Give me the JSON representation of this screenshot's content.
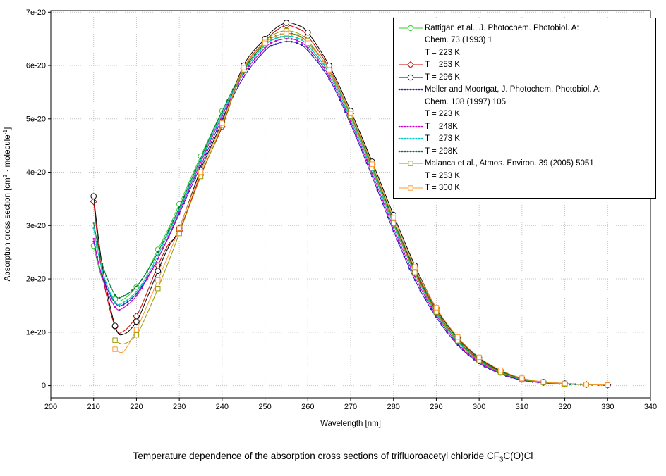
{
  "chart_data": {
    "type": "line",
    "title": "Temperature dependence of the absorption cross sections of trifluoroacetyl chloride CF3C(O)Cl",
    "caption_parts": {
      "prefix": "Temperature dependence of the absorption cross sections of trifluoroacetyl chloride CF",
      "sub": "3",
      "suffix": "C(O)Cl"
    },
    "xlabel": "Wavelength [nm]",
    "ylabel_parts": [
      {
        "t": "Absorption cross section [cm"
      },
      {
        "t": "2",
        "sup": true
      },
      {
        "t": " · molecule"
      },
      {
        "t": "-1",
        "sup": true
      },
      {
        "t": "]"
      }
    ],
    "x_range": [
      200,
      340
    ],
    "y_range_1e20": [
      -0.23,
      7.03
    ],
    "values_unit": "1e-20 cm2 molecule-1",
    "grid": true,
    "legend_position": "top-right",
    "x_ticks": [
      200,
      210,
      220,
      230,
      240,
      250,
      260,
      270,
      280,
      290,
      300,
      310,
      320,
      330,
      340
    ],
    "y_ticks": [
      {
        "v": 0,
        "label": "0"
      },
      {
        "v": 1,
        "label": "1e-20"
      },
      {
        "v": 2,
        "label": "2e-20"
      },
      {
        "v": 3,
        "label": "3e-20"
      },
      {
        "v": 4,
        "label": "4e-20"
      },
      {
        "v": 5,
        "label": "5e-20"
      },
      {
        "v": 6,
        "label": "6e-20"
      },
      {
        "v": 7,
        "label": "7e-20"
      }
    ],
    "colors": {
      "grid": "#c4c4c4",
      "axis": "#000000"
    },
    "x": [
      210,
      212,
      215,
      217,
      220,
      222.5,
      225,
      227.5,
      230,
      235,
      240,
      245,
      250,
      252.5,
      255,
      257.5,
      260,
      265,
      270,
      275,
      280,
      285,
      290,
      295,
      300,
      305,
      310,
      315,
      320,
      325,
      330
    ],
    "series": [
      {
        "id": "rattigan-223",
        "source": "Rattigan et al., J. Photochem. Photobiol. A: Chem. 73 (1993) 1",
        "temperature": "T = 223 K",
        "color": "#33cc33",
        "marker": "circle",
        "open": true,
        "marker_size": 3.6,
        "marker_step": 5,
        "values": [
          2.62,
          2.0,
          1.62,
          1.62,
          1.85,
          2.15,
          2.55,
          2.95,
          3.4,
          4.3,
          5.15,
          5.9,
          6.38,
          6.5,
          6.55,
          6.52,
          6.38,
          5.85,
          5.0,
          4.05,
          3.05,
          2.1,
          1.35,
          0.82,
          0.46,
          0.24,
          0.12,
          0.06,
          0.03,
          0.02,
          0.01
        ]
      },
      {
        "id": "rattigan-253",
        "source": "Rattigan et al., J. Photochem. Photobiol. A: Chem. 73 (1993) 1",
        "temperature": "T = 253 K",
        "color": "#cc0000",
        "marker": "diamond",
        "open": true,
        "marker_size": 3.4,
        "marker_step": 5,
        "values": [
          3.45,
          2.1,
          1.1,
          1.02,
          1.3,
          1.75,
          2.25,
          2.65,
          2.9,
          3.95,
          4.85,
          5.95,
          6.45,
          6.65,
          6.75,
          6.7,
          6.55,
          5.95,
          5.1,
          4.15,
          3.1,
          2.15,
          1.4,
          0.85,
          0.48,
          0.26,
          0.12,
          0.06,
          0.03,
          0.02,
          0.01
        ]
      },
      {
        "id": "rattigan-296",
        "source": "Rattigan et al., J. Photochem. Photobiol. A: Chem. 73 (1993) 1",
        "temperature": "T = 296 K",
        "color": "#000000",
        "marker": "circle",
        "open": true,
        "marker_size": 3.8,
        "marker_step": 5,
        "values": [
          3.55,
          2.25,
          1.12,
          0.96,
          1.2,
          1.65,
          2.15,
          2.6,
          2.95,
          4.05,
          4.95,
          6.0,
          6.5,
          6.7,
          6.8,
          6.76,
          6.62,
          6.0,
          5.15,
          4.2,
          3.2,
          2.25,
          1.45,
          0.9,
          0.52,
          0.28,
          0.13,
          0.07,
          0.04,
          0.02,
          0.01
        ]
      },
      {
        "id": "meller-223",
        "source": "Meller and Moortgat, J. Photochem. Photobiol. A: Chem. 108 (1997) 105",
        "temperature": "T = 223 K",
        "color": "#2222bb",
        "marker": "dot",
        "open": false,
        "marker_size": 1.3,
        "marker_step": 0,
        "values": [
          2.7,
          2.05,
          1.55,
          1.52,
          1.72,
          2.02,
          2.38,
          2.78,
          3.22,
          4.12,
          5.0,
          5.78,
          6.28,
          6.4,
          6.45,
          6.42,
          6.28,
          5.75,
          4.9,
          3.92,
          2.9,
          1.98,
          1.28,
          0.76,
          0.42,
          0.22,
          0.1,
          0.05,
          0.03,
          0.02,
          0.01
        ]
      },
      {
        "id": "meller-248",
        "source": "Meller and Moortgat, J. Photochem. Photobiol. A: Chem. 108 (1997) 105",
        "temperature": "T = 248K",
        "color": "#cc00cc",
        "marker": "dot",
        "open": false,
        "marker_size": 1.3,
        "marker_step": 0,
        "values": [
          2.75,
          2.02,
          1.47,
          1.46,
          1.68,
          2.0,
          2.38,
          2.8,
          3.26,
          4.18,
          5.06,
          5.84,
          6.33,
          6.46,
          6.5,
          6.47,
          6.33,
          5.8,
          4.95,
          3.98,
          2.96,
          2.04,
          1.32,
          0.79,
          0.44,
          0.23,
          0.11,
          0.05,
          0.03,
          0.02,
          0.01
        ]
      },
      {
        "id": "meller-273",
        "source": "Meller and Moortgat, J. Photochem. Photobiol. A: Chem. 108 (1997) 105",
        "temperature": "T = 273 K",
        "color": "#00c8c8",
        "marker": "dot",
        "open": false,
        "marker_size": 1.3,
        "marker_step": 0,
        "values": [
          2.95,
          2.15,
          1.57,
          1.56,
          1.76,
          2.06,
          2.44,
          2.86,
          3.3,
          4.22,
          5.1,
          5.88,
          6.38,
          6.51,
          6.55,
          6.52,
          6.38,
          5.86,
          5.0,
          4.04,
          3.02,
          2.1,
          1.37,
          0.83,
          0.47,
          0.25,
          0.12,
          0.06,
          0.03,
          0.02,
          0.01
        ]
      },
      {
        "id": "meller-298",
        "source": "Meller and Moortgat, J. Photochem. Photobiol. A: Chem. 108 (1997) 105",
        "temperature": "T = 298K",
        "color": "#007a33",
        "marker": "dot",
        "open": false,
        "marker_size": 1.3,
        "marker_step": 0,
        "values": [
          3.05,
          2.28,
          1.7,
          1.68,
          1.86,
          2.14,
          2.5,
          2.9,
          3.34,
          4.26,
          5.14,
          5.92,
          6.42,
          6.55,
          6.6,
          6.57,
          6.43,
          5.92,
          5.08,
          4.12,
          3.1,
          2.18,
          1.43,
          0.88,
          0.5,
          0.27,
          0.13,
          0.06,
          0.03,
          0.02,
          0.01
        ]
      },
      {
        "id": "malanca-253",
        "source": "Malanca et al., Atmos. Environ. 39 (2005) 5051",
        "temperature": "T = 253 K",
        "color": "#999900",
        "marker": "square",
        "open": true,
        "marker_size": 3.2,
        "marker_step": 5,
        "values": [
          null,
          null,
          0.85,
          0.78,
          0.95,
          1.35,
          1.82,
          2.32,
          2.85,
          3.92,
          4.88,
          5.92,
          6.45,
          6.6,
          6.65,
          6.61,
          6.47,
          5.9,
          5.05,
          4.08,
          3.05,
          2.12,
          1.38,
          0.84,
          0.47,
          0.25,
          0.12,
          0.06,
          0.03,
          0.02,
          0.01
        ]
      },
      {
        "id": "malanca-300",
        "source": "Malanca et al., Atmos. Environ. 39 (2005) 5051",
        "temperature": "T = 300 K",
        "color": "#ff9933",
        "marker": "square",
        "open": true,
        "marker_size": 3.2,
        "marker_step": 5,
        "values": [
          null,
          null,
          0.68,
          0.64,
          1.05,
          1.5,
          1.98,
          2.45,
          2.95,
          4.0,
          4.92,
          5.96,
          6.42,
          6.55,
          6.6,
          6.56,
          6.42,
          5.92,
          5.1,
          4.15,
          3.15,
          2.22,
          1.46,
          0.91,
          0.53,
          0.29,
          0.14,
          0.07,
          0.04,
          0.02,
          0.01
        ]
      }
    ],
    "legend": [
      {
        "series": "rattigan-223",
        "lines": [
          "Rattigan et al., J. Photochem. Photobiol. A:",
          "Chem. 73 (1993) 1",
          "T = 223 K"
        ]
      },
      {
        "series": "rattigan-253",
        "lines": [
          "T = 253 K"
        ]
      },
      {
        "series": "rattigan-296",
        "lines": [
          "T = 296 K"
        ]
      },
      {
        "series": "meller-223",
        "lines": [
          "Meller and Moortgat, J. Photochem. Photobiol. A:",
          "Chem. 108 (1997) 105",
          "T = 223 K"
        ]
      },
      {
        "series": "meller-248",
        "lines": [
          "T = 248K"
        ]
      },
      {
        "series": "meller-273",
        "lines": [
          "T = 273 K"
        ]
      },
      {
        "series": "meller-298",
        "lines": [
          "T = 298K"
        ]
      },
      {
        "series": "malanca-253",
        "lines": [
          "Malanca et al., Atmos. Environ. 39 (2005) 5051",
          "T = 253 K"
        ]
      },
      {
        "series": "malanca-300",
        "lines": [
          "T = 300 K"
        ]
      }
    ]
  }
}
